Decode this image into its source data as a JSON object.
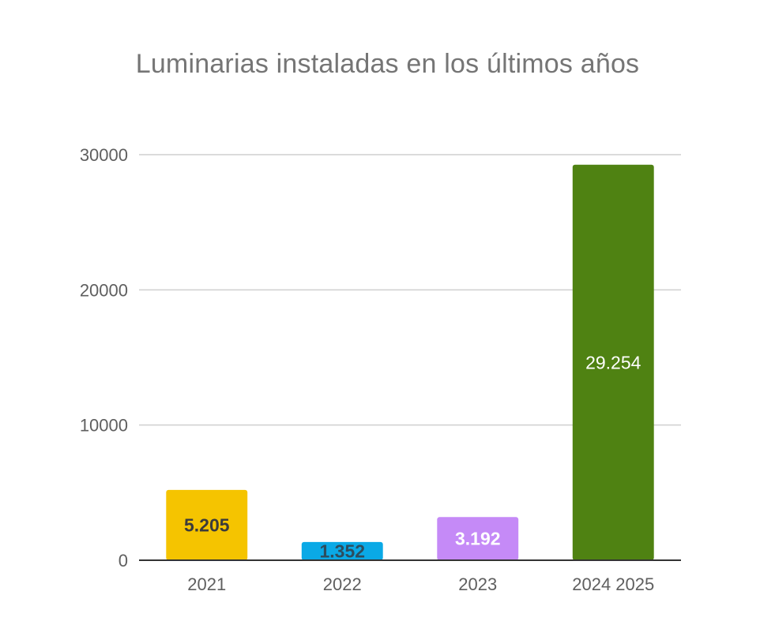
{
  "chart_data": {
    "type": "bar",
    "title": "Luminarias instaladas en los últimos años",
    "xlabel": "",
    "ylabel": "",
    "categories": [
      "2021",
      "2022",
      "2023",
      "2024 2025"
    ],
    "values": [
      5205,
      1352,
      3192,
      29254
    ],
    "value_labels": [
      "5.205",
      "1.352",
      "3.192",
      "29.254"
    ],
    "bar_colors": [
      "#f5c400",
      "#0aa9e6",
      "#c58af7",
      "#4f8212"
    ],
    "label_colors": [
      "#3b3b3b",
      "#2d4d5e",
      "#ffffff",
      "#ffffff"
    ],
    "label_bold": [
      true,
      true,
      true,
      false
    ],
    "ylim": [
      0,
      30000
    ],
    "yticks": [
      0,
      10000,
      20000,
      30000
    ],
    "ytick_labels": [
      "0",
      "10000",
      "20000",
      "30000"
    ],
    "grid": true,
    "legend": "none"
  }
}
